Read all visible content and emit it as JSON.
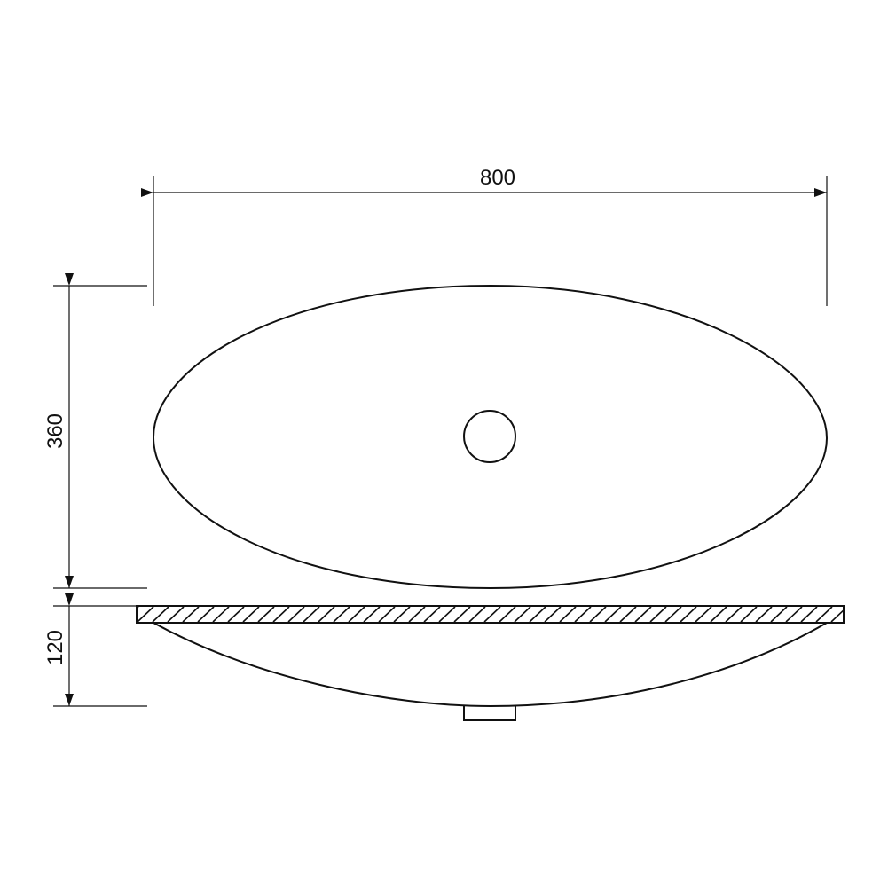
{
  "drawing": {
    "dimensions": {
      "length": "800",
      "width": "360",
      "height": "120"
    }
  }
}
